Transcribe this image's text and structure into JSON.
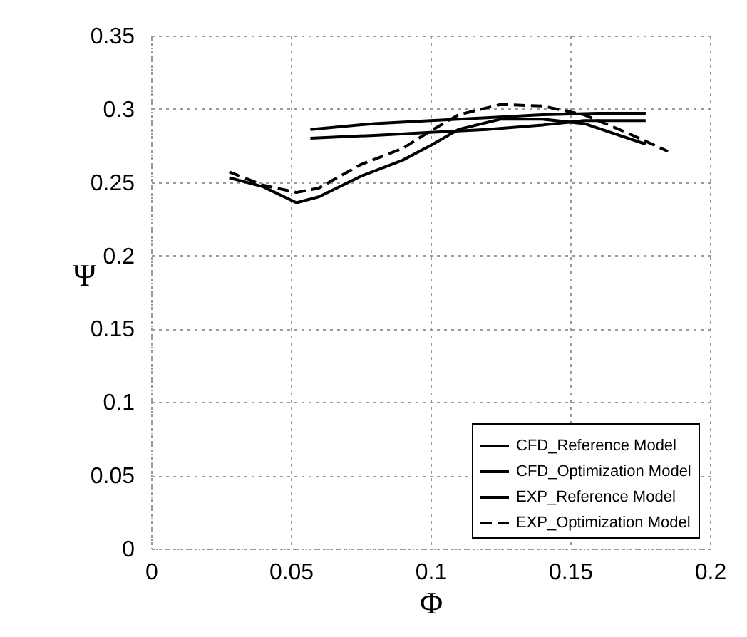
{
  "chart_data": {
    "type": "line",
    "xlabel": "Φ",
    "ylabel": "Ψ",
    "xlim": [
      0,
      0.2
    ],
    "ylim": [
      0,
      0.35
    ],
    "xticks": [
      0,
      0.05,
      0.1,
      0.15,
      0.2
    ],
    "yticks": [
      0,
      0.05,
      0.1,
      0.15,
      0.2,
      0.25,
      0.3,
      0.35
    ],
    "grid": true,
    "legend": "bottom right",
    "series": [
      {
        "name": "CFD_Reference Model",
        "color": "#000000",
        "line_style": "solid",
        "x": [
          0.057,
          0.08,
          0.1,
          0.12,
          0.14,
          0.16,
          0.177
        ],
        "values": [
          0.286,
          0.29,
          0.292,
          0.294,
          0.296,
          0.297,
          0.297
        ]
      },
      {
        "name": "CFD_Optimization Model",
        "color": "#000000",
        "line_style": "solid",
        "x": [
          0.057,
          0.08,
          0.1,
          0.12,
          0.14,
          0.155,
          0.177
        ],
        "values": [
          0.28,
          0.282,
          0.284,
          0.286,
          0.289,
          0.292,
          0.292
        ]
      },
      {
        "name": "EXP_Reference Model",
        "color": "#000000",
        "line_style": "solid",
        "x": [
          0.028,
          0.04,
          0.052,
          0.06,
          0.075,
          0.09,
          0.1,
          0.11,
          0.125,
          0.14,
          0.155,
          0.177
        ],
        "values": [
          0.253,
          0.247,
          0.236,
          0.24,
          0.254,
          0.265,
          0.275,
          0.286,
          0.293,
          0.293,
          0.29,
          0.276
        ]
      },
      {
        "name": "EXP_Optimization Model",
        "color": "#000000",
        "line_style": "dashed",
        "x": [
          0.028,
          0.04,
          0.052,
          0.06,
          0.075,
          0.09,
          0.1,
          0.11,
          0.125,
          0.14,
          0.155,
          0.17,
          0.185
        ],
        "values": [
          0.257,
          0.248,
          0.243,
          0.246,
          0.262,
          0.273,
          0.285,
          0.296,
          0.303,
          0.302,
          0.296,
          0.284,
          0.271
        ]
      }
    ]
  }
}
